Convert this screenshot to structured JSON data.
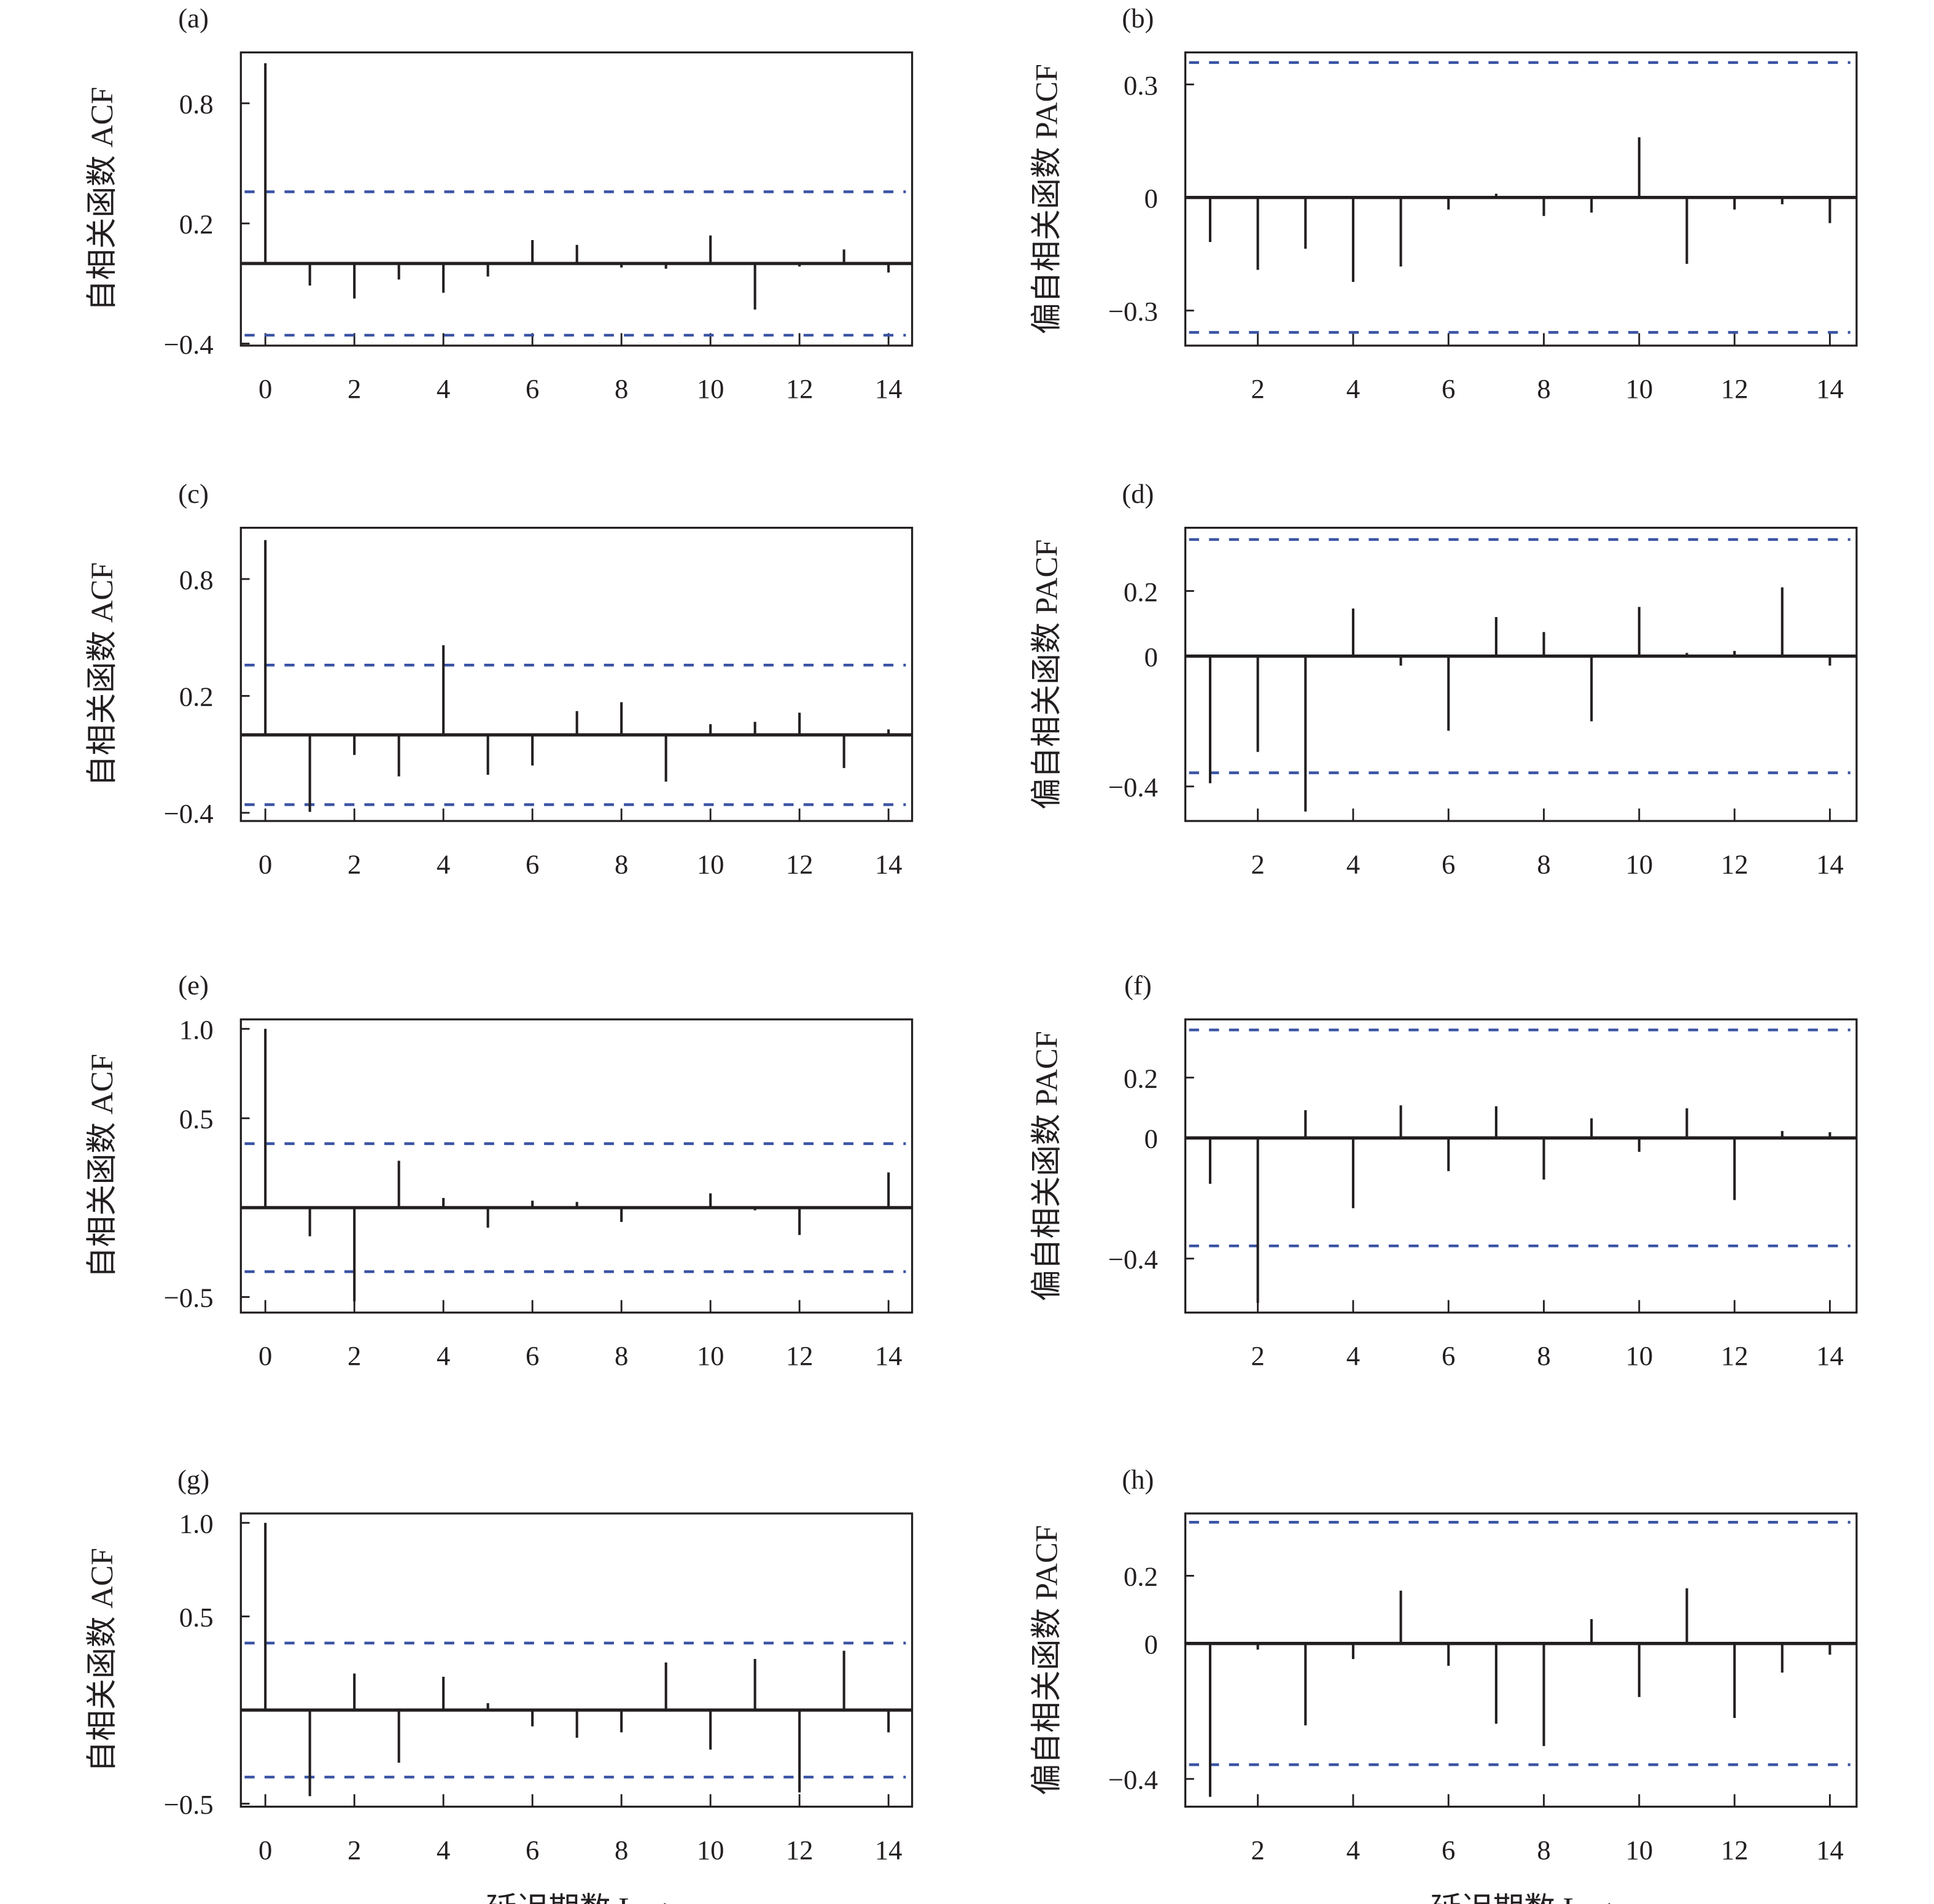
{
  "colors": {
    "stem": "#231f20",
    "confidence_band": "#3a53a4",
    "axes": "#231f20"
  },
  "chart_data": [
    {
      "panel": "(a)",
      "type": "bar",
      "ylabel": "自相关函数 ACF",
      "xlabel": "",
      "x": [
        0,
        1,
        2,
        3,
        4,
        5,
        6,
        7,
        8,
        9,
        10,
        11,
        12,
        13,
        14
      ],
      "values": [
        1.0,
        -0.11,
        -0.175,
        -0.08,
        -0.146,
        -0.065,
        0.117,
        0.093,
        -0.02,
        -0.026,
        0.14,
        -0.23,
        -0.015,
        0.07,
        -0.045
      ],
      "yticks": [
        -0.4,
        0.2,
        0.8
      ],
      "ytick_labels": [
        "−0.4",
        "0.2",
        "0.8"
      ],
      "xticks": [
        0,
        2,
        4,
        6,
        8,
        10,
        12,
        14
      ],
      "xtick_labels": [
        "0",
        "2",
        "4",
        "6",
        "8",
        "10",
        "12",
        "14"
      ],
      "ylim": [
        -0.41,
        1.054
      ],
      "xlim": [
        -0.55,
        14.53
      ],
      "confidence_band": [
        -0.358,
        0.358
      ],
      "grid": false
    },
    {
      "panel": "(b)",
      "type": "bar",
      "ylabel": "偏自相关函数 PACF",
      "xlabel": "",
      "x": [
        1,
        2,
        3,
        4,
        5,
        6,
        7,
        8,
        9,
        10,
        11,
        12,
        13,
        14
      ],
      "values": [
        -0.118,
        -0.192,
        -0.136,
        -0.224,
        -0.183,
        -0.032,
        0.01,
        -0.049,
        -0.04,
        0.16,
        -0.176,
        -0.032,
        -0.018,
        -0.068
      ],
      "yticks": [
        -0.3,
        0,
        0.3
      ],
      "ytick_labels": [
        "−0.3",
        "0",
        "0.3"
      ],
      "xticks": [
        2,
        4,
        6,
        8,
        10,
        12,
        14
      ],
      "xtick_labels": [
        "2",
        "4",
        "6",
        "8",
        "10",
        "12",
        "14"
      ],
      "ylim": [
        -0.393,
        0.385
      ],
      "xlim": [
        0.48,
        14.56
      ],
      "confidence_band": [
        -0.358,
        0.358
      ],
      "grid": false
    },
    {
      "panel": "(c)",
      "type": "bar",
      "ylabel": "自相关函数 ACF",
      "xlabel": "",
      "x": [
        0,
        1,
        2,
        3,
        4,
        5,
        6,
        7,
        8,
        9,
        10,
        11,
        12,
        13,
        14
      ],
      "values": [
        1.0,
        -0.395,
        -0.103,
        -0.213,
        0.46,
        -0.205,
        -0.157,
        0.122,
        0.168,
        -0.24,
        0.055,
        0.067,
        0.114,
        -0.17,
        0.028
      ],
      "yticks": [
        -0.4,
        0.2,
        0.8
      ],
      "ytick_labels": [
        "−0.4",
        "0.2",
        "0.8"
      ],
      "xticks": [
        0,
        2,
        4,
        6,
        8,
        10,
        12,
        14
      ],
      "xtick_labels": [
        "0",
        "2",
        "4",
        "6",
        "8",
        "10",
        "12",
        "14"
      ],
      "ylim": [
        -0.442,
        1.063
      ],
      "xlim": [
        -0.55,
        14.53
      ],
      "confidence_band": [
        -0.358,
        0.358
      ],
      "grid": false
    },
    {
      "panel": "(d)",
      "type": "bar",
      "ylabel": "偏自相关函数 PACF",
      "xlabel": "",
      "x": [
        1,
        2,
        3,
        4,
        5,
        6,
        7,
        8,
        9,
        10,
        11,
        12,
        13,
        14
      ],
      "values": [
        -0.39,
        -0.294,
        -0.477,
        0.146,
        -0.029,
        -0.229,
        0.12,
        0.074,
        -0.2,
        0.151,
        0.01,
        0.016,
        0.211,
        -0.029
      ],
      "yticks": [
        -0.4,
        0,
        0.2
      ],
      "ytick_labels": [
        "−0.4",
        "0",
        "0.2"
      ],
      "xticks": [
        2,
        4,
        6,
        8,
        10,
        12,
        14
      ],
      "xtick_labels": [
        "2",
        "4",
        "6",
        "8",
        "10",
        "12",
        "14"
      ],
      "ylim": [
        -0.506,
        0.394
      ],
      "xlim": [
        0.48,
        14.56
      ],
      "confidence_band": [
        -0.358,
        0.358
      ],
      "grid": false
    },
    {
      "panel": "(e)",
      "type": "bar",
      "ylabel": "自相关函数 ACF",
      "xlabel": "",
      "x": [
        0,
        1,
        2,
        3,
        4,
        5,
        6,
        7,
        8,
        9,
        10,
        11,
        12,
        13,
        14
      ],
      "values": [
        1.0,
        -0.16,
        -0.524,
        0.262,
        0.054,
        -0.112,
        0.039,
        0.032,
        -0.08,
        -0.005,
        0.08,
        -0.015,
        -0.153,
        0.0,
        0.197
      ],
      "yticks": [
        -0.5,
        0.5,
        1.0
      ],
      "ytick_labels": [
        "−0.5",
        "0.5",
        "1.0"
      ],
      "xticks": [
        0,
        2,
        4,
        6,
        8,
        10,
        12,
        14
      ],
      "xtick_labels": [
        "0",
        "2",
        "4",
        "6",
        "8",
        "10",
        "12",
        "14"
      ],
      "ylim": [
        -0.587,
        1.053
      ],
      "xlim": [
        -0.55,
        14.53
      ],
      "confidence_band": [
        -0.358,
        0.358
      ],
      "grid": false
    },
    {
      "panel": "(f)",
      "type": "bar",
      "ylabel": "偏自相关函数 PACF",
      "xlabel": "",
      "x": [
        1,
        2,
        3,
        4,
        5,
        6,
        7,
        8,
        9,
        10,
        11,
        12,
        13,
        14
      ],
      "values": [
        -0.152,
        -0.547,
        0.092,
        -0.233,
        0.108,
        -0.11,
        0.105,
        -0.138,
        0.065,
        -0.046,
        0.098,
        -0.206,
        0.023,
        0.019
      ],
      "yticks": [
        -0.4,
        0,
        0.2
      ],
      "ytick_labels": [
        "−0.4",
        "0",
        "0.2"
      ],
      "xticks": [
        2,
        4,
        6,
        8,
        10,
        12,
        14
      ],
      "xtick_labels": [
        "2",
        "4",
        "6",
        "8",
        "10",
        "12",
        "14"
      ],
      "ylim": [
        -0.579,
        0.393
      ],
      "xlim": [
        0.48,
        14.56
      ],
      "confidence_band": [
        -0.358,
        0.358
      ],
      "grid": false
    },
    {
      "panel": "(g)",
      "type": "bar",
      "ylabel": "自相关函数 ACF",
      "xlabel": "延迟期数 Lag",
      "x": [
        0,
        1,
        2,
        3,
        4,
        5,
        6,
        7,
        8,
        9,
        10,
        11,
        12,
        13,
        14
      ],
      "values": [
        1.0,
        -0.46,
        0.195,
        -0.281,
        0.178,
        0.037,
        -0.087,
        -0.148,
        -0.119,
        0.254,
        -0.211,
        0.273,
        -0.44,
        0.317,
        -0.119
      ],
      "yticks": [
        -0.5,
        0.5,
        1.0
      ],
      "ytick_labels": [
        "−0.5",
        "0.5",
        "1.0"
      ],
      "xticks": [
        0,
        2,
        4,
        6,
        8,
        10,
        12,
        14
      ],
      "xtick_labels": [
        "0",
        "2",
        "4",
        "6",
        "8",
        "10",
        "12",
        "14"
      ],
      "ylim": [
        -0.516,
        1.05
      ],
      "xlim": [
        -0.55,
        14.53
      ],
      "confidence_band": [
        -0.358,
        0.358
      ],
      "grid": false
    },
    {
      "panel": "(h)",
      "type": "bar",
      "ylabel": "偏自相关函数 PACF",
      "xlabel": "延迟期数 Lag",
      "x": [
        1,
        2,
        3,
        4,
        5,
        6,
        7,
        8,
        9,
        10,
        11,
        12,
        13,
        14
      ],
      "values": [
        -0.453,
        -0.018,
        -0.242,
        -0.046,
        0.156,
        -0.066,
        -0.237,
        -0.303,
        0.072,
        -0.158,
        0.163,
        -0.22,
        -0.086,
        -0.033
      ],
      "yticks": [
        -0.4,
        0,
        0.2
      ],
      "ytick_labels": [
        "−0.4",
        "0",
        "0.2"
      ],
      "xticks": [
        2,
        4,
        6,
        8,
        10,
        12,
        14
      ],
      "xtick_labels": [
        "2",
        "4",
        "6",
        "8",
        "10",
        "12",
        "14"
      ],
      "ylim": [
        -0.482,
        0.384
      ],
      "xlim": [
        0.48,
        14.56
      ],
      "confidence_band": [
        -0.358,
        0.358
      ],
      "grid": false
    }
  ]
}
